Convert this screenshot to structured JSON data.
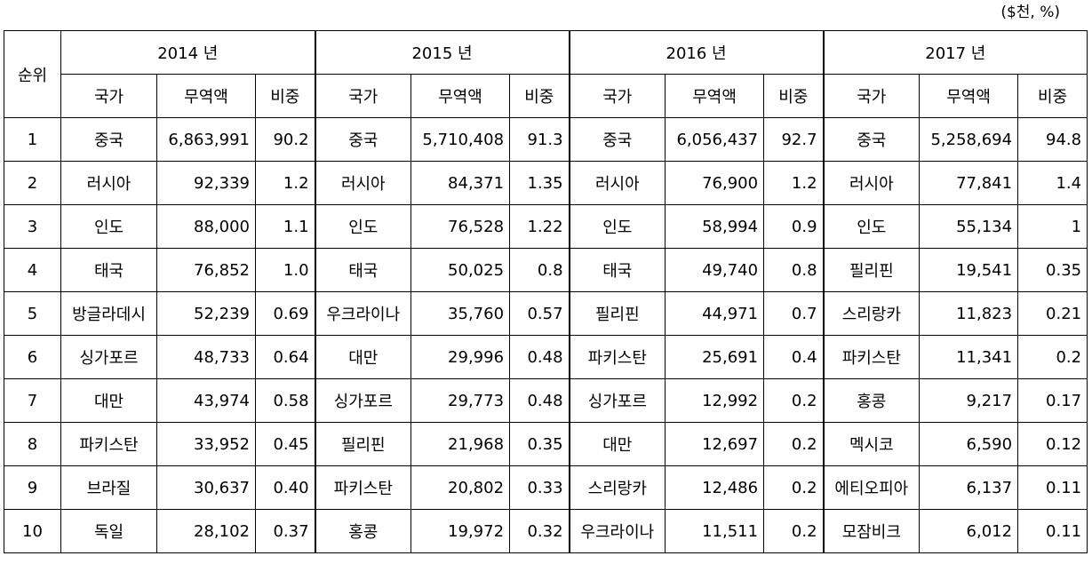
{
  "unit": "($천, %)",
  "rank_header": "순위",
  "years": [
    "2014 년",
    "2015 년",
    "2016 년",
    "2017 년"
  ],
  "sub_headers": {
    "country": "국가",
    "amount": "무역액",
    "share": "비중"
  },
  "rows": [
    {
      "rank": "1",
      "cells": [
        {
          "country": "중국",
          "amount": "6,863,991",
          "share": "90.2"
        },
        {
          "country": "중국",
          "amount": "5,710,408",
          "share": "91.3"
        },
        {
          "country": "중국",
          "amount": "6,056,437",
          "share": "92.7"
        },
        {
          "country": "중국",
          "amount": "5,258,694",
          "share": "94.8"
        }
      ]
    },
    {
      "rank": "2",
      "cells": [
        {
          "country": "러시아",
          "amount": "92,339",
          "share": "1.2"
        },
        {
          "country": "러시아",
          "amount": "84,371",
          "share": "1.35"
        },
        {
          "country": "러시아",
          "amount": "76,900",
          "share": "1.2"
        },
        {
          "country": "러시아",
          "amount": "77,841",
          "share": "1.4"
        }
      ]
    },
    {
      "rank": "3",
      "cells": [
        {
          "country": "인도",
          "amount": "88,000",
          "share": "1.1"
        },
        {
          "country": "인도",
          "amount": "76,528",
          "share": "1.22"
        },
        {
          "country": "인도",
          "amount": "58,994",
          "share": "0.9"
        },
        {
          "country": "인도",
          "amount": "55,134",
          "share": "1"
        }
      ]
    },
    {
      "rank": "4",
      "cells": [
        {
          "country": "태국",
          "amount": "76,852",
          "share": "1.0"
        },
        {
          "country": "태국",
          "amount": "50,025",
          "share": "0.8"
        },
        {
          "country": "태국",
          "amount": "49,740",
          "share": "0.8"
        },
        {
          "country": "필리핀",
          "amount": "19,541",
          "share": "0.35"
        }
      ]
    },
    {
      "rank": "5",
      "cells": [
        {
          "country": "방글라데시",
          "amount": "52,239",
          "share": "0.69"
        },
        {
          "country": "우크라이나",
          "amount": "35,760",
          "share": "0.57"
        },
        {
          "country": "필리핀",
          "amount": "44,971",
          "share": "0.7"
        },
        {
          "country": "스리랑카",
          "amount": "11,823",
          "share": "0.21"
        }
      ]
    },
    {
      "rank": "6",
      "cells": [
        {
          "country": "싱가포르",
          "amount": "48,733",
          "share": "0.64"
        },
        {
          "country": "대만",
          "amount": "29,996",
          "share": "0.48"
        },
        {
          "country": "파키스탄",
          "amount": "25,691",
          "share": "0.4"
        },
        {
          "country": "파키스탄",
          "amount": "11,341",
          "share": "0.2"
        }
      ]
    },
    {
      "rank": "7",
      "cells": [
        {
          "country": "대만",
          "amount": "43,974",
          "share": "0.58"
        },
        {
          "country": "싱가포르",
          "amount": "29,773",
          "share": "0.48"
        },
        {
          "country": "싱가포르",
          "amount": "12,992",
          "share": "0.2"
        },
        {
          "country": "홍콩",
          "amount": "9,217",
          "share": "0.17"
        }
      ]
    },
    {
      "rank": "8",
      "cells": [
        {
          "country": "파키스탄",
          "amount": "33,952",
          "share": "0.45"
        },
        {
          "country": "필리핀",
          "amount": "21,968",
          "share": "0.35"
        },
        {
          "country": "대만",
          "amount": "12,697",
          "share": "0.2"
        },
        {
          "country": "멕시코",
          "amount": "6,590",
          "share": "0.12"
        }
      ]
    },
    {
      "rank": "9",
      "cells": [
        {
          "country": "브라질",
          "amount": "30,637",
          "share": "0.40"
        },
        {
          "country": "파키스탄",
          "amount": "20,802",
          "share": "0.33"
        },
        {
          "country": "스리랑카",
          "amount": "12,486",
          "share": "0.2"
        },
        {
          "country": "에티오피아",
          "amount": "6,137",
          "share": "0.11"
        }
      ]
    },
    {
      "rank": "10",
      "cells": [
        {
          "country": "독일",
          "amount": "28,102",
          "share": "0.37"
        },
        {
          "country": "홍콩",
          "amount": "19,972",
          "share": "0.32"
        },
        {
          "country": "우크라이나",
          "amount": "11,511",
          "share": "0.2"
        },
        {
          "country": "모잠비크",
          "amount": "6,012",
          "share": "0.11"
        }
      ]
    }
  ]
}
